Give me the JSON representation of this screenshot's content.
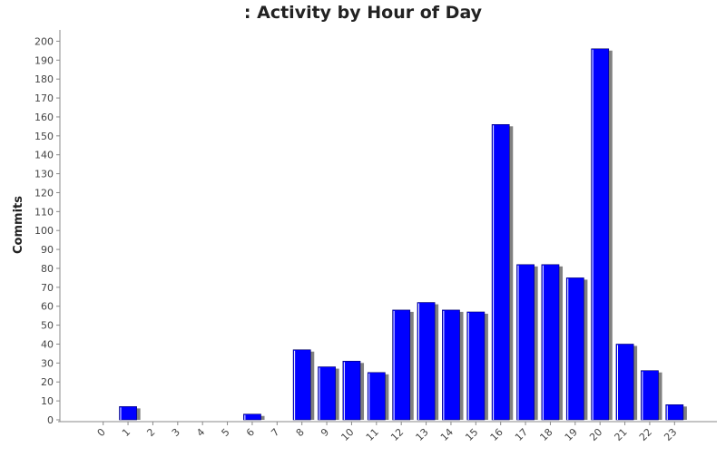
{
  "chart_data": {
    "type": "bar",
    "title": ": Activity by Hour of Day",
    "xlabel": "",
    "ylabel": "Commits",
    "categories": [
      "0",
      "1",
      "2",
      "3",
      "4",
      "5",
      "6",
      "7",
      "8",
      "9",
      "10",
      "11",
      "12",
      "13",
      "14",
      "15",
      "16",
      "17",
      "18",
      "19",
      "20",
      "21",
      "22",
      "23"
    ],
    "values": [
      0,
      7,
      0,
      0,
      0,
      0,
      3,
      0,
      37,
      28,
      31,
      25,
      58,
      62,
      58,
      57,
      156,
      82,
      82,
      75,
      196,
      40,
      26,
      8
    ],
    "y_ticks": [
      0,
      10,
      20,
      30,
      40,
      50,
      60,
      70,
      80,
      90,
      100,
      110,
      120,
      130,
      140,
      150,
      160,
      170,
      180,
      190,
      200
    ],
    "ylim": [
      0,
      205
    ],
    "grid": false,
    "legend": "none",
    "colors": {
      "bar": "#0000ff",
      "bar_edge": "#000066",
      "bar_highlight": "#ffffff",
      "shadow": "#808080",
      "axis": "#888888",
      "plot_background": "#ffffff"
    }
  }
}
